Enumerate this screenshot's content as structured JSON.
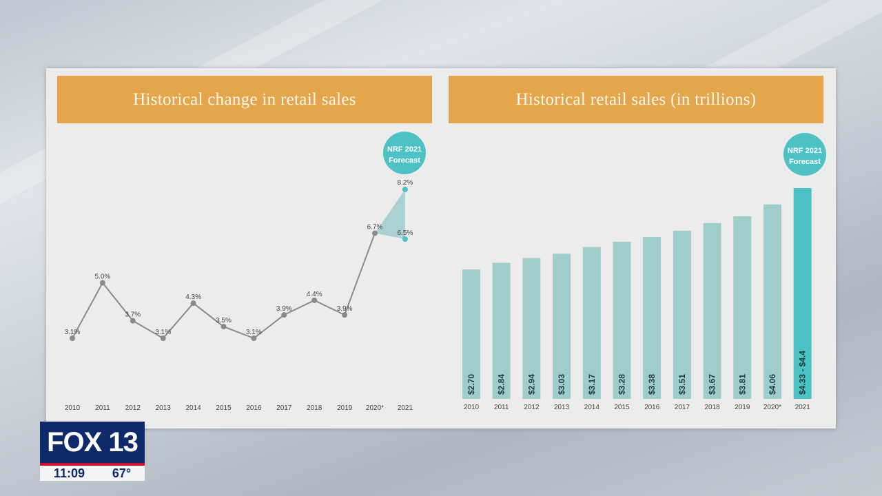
{
  "broadcast": {
    "logo_text": "FOX 13",
    "time": "11:09",
    "temperature": "67°"
  },
  "colors": {
    "header": "#e5a54b",
    "historical": "#9ecdcc",
    "forecast": "#4cc2c4",
    "line": "#8a8a8a"
  },
  "chart_data": [
    {
      "type": "line",
      "title": "Historical change in retail sales",
      "badge": [
        "NRF 2021",
        "Forecast"
      ],
      "categories": [
        "2010",
        "2011",
        "2012",
        "2013",
        "2014",
        "2015",
        "2016",
        "2017",
        "2018",
        "2019",
        "2020*",
        "2021"
      ],
      "values": [
        3.1,
        5.0,
        3.7,
        3.1,
        4.3,
        3.5,
        3.1,
        3.9,
        4.4,
        3.9,
        6.7,
        null
      ],
      "labels": [
        "3.1%",
        "5.0%",
        "3.7%",
        "3.1%",
        "4.3%",
        "3.5%",
        "3.1%",
        "3.9%",
        "4.4%",
        "3.9%",
        "6.7%"
      ],
      "forecast_range": {
        "category": "2021",
        "high": 8.2,
        "low": 6.5,
        "high_label": "8.2%",
        "low_label": "6.5%"
      },
      "ylim": [
        2,
        9
      ]
    },
    {
      "type": "bar",
      "title": "Historical retail sales (in trillions)",
      "badge": [
        "NRF 2021",
        "Forecast"
      ],
      "categories": [
        "2010",
        "2011",
        "2012",
        "2013",
        "2014",
        "2015",
        "2016",
        "2017",
        "2018",
        "2019",
        "2020*",
        "2021"
      ],
      "values": [
        2.7,
        2.84,
        2.94,
        3.03,
        3.17,
        3.28,
        3.38,
        3.51,
        3.67,
        3.81,
        4.06,
        4.4
      ],
      "labels": [
        "$2.70",
        "$2.84",
        "$2.94",
        "$3.03",
        "$3.17",
        "$3.28",
        "$3.38",
        "$3.51",
        "$3.67",
        "$3.81",
        "$4.06",
        "$4.33 - $4.4"
      ],
      "forecast_index": 11,
      "ylim": [
        0,
        4.4
      ]
    }
  ]
}
